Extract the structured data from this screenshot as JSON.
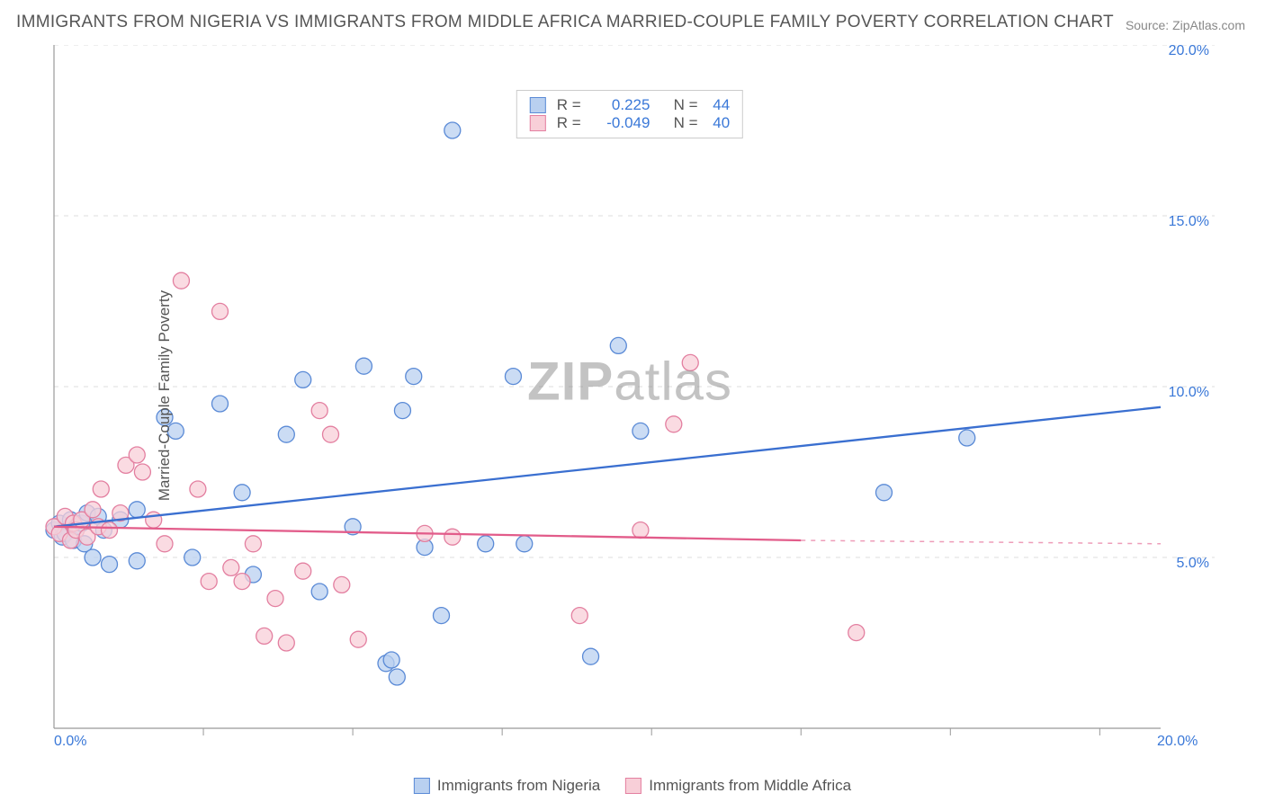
{
  "title": "IMMIGRANTS FROM NIGERIA VS IMMIGRANTS FROM MIDDLE AFRICA MARRIED-COUPLE FAMILY POVERTY CORRELATION CHART",
  "source": "Source: ZipAtlas.com",
  "ylabel": "Married-Couple Family Poverty",
  "watermark_bold": "ZIP",
  "watermark_rest": "atlas",
  "series": [
    {
      "name": "Immigrants from Nigeria",
      "fill": "#b9d0f0",
      "stroke": "#5a8ad6",
      "line_color": "#3a6fd0",
      "r_value": "0.225",
      "n_value": "44",
      "trend": {
        "x1": 0.0,
        "y1": 5.9,
        "x2": 20.0,
        "y2": 9.4
      },
      "points": [
        [
          0.0,
          5.8
        ],
        [
          0.1,
          6.0
        ],
        [
          0.15,
          5.6
        ],
        [
          0.2,
          5.7
        ],
        [
          0.3,
          6.1
        ],
        [
          0.35,
          5.5
        ],
        [
          0.4,
          5.9
        ],
        [
          0.5,
          6.0
        ],
        [
          0.55,
          5.4
        ],
        [
          0.6,
          6.3
        ],
        [
          0.7,
          5.0
        ],
        [
          0.8,
          6.2
        ],
        [
          0.9,
          5.8
        ],
        [
          1.0,
          4.8
        ],
        [
          1.2,
          6.1
        ],
        [
          1.5,
          6.4
        ],
        [
          1.5,
          4.9
        ],
        [
          2.0,
          9.1
        ],
        [
          2.2,
          8.7
        ],
        [
          2.5,
          5.0
        ],
        [
          3.0,
          9.5
        ],
        [
          3.4,
          6.9
        ],
        [
          3.6,
          4.5
        ],
        [
          4.2,
          8.6
        ],
        [
          4.5,
          10.2
        ],
        [
          4.8,
          4.0
        ],
        [
          5.4,
          5.9
        ],
        [
          5.6,
          10.6
        ],
        [
          6.0,
          1.9
        ],
        [
          6.1,
          2.0
        ],
        [
          6.2,
          1.5
        ],
        [
          6.3,
          9.3
        ],
        [
          6.5,
          10.3
        ],
        [
          6.7,
          5.3
        ],
        [
          7.0,
          3.3
        ],
        [
          7.2,
          17.5
        ],
        [
          7.8,
          5.4
        ],
        [
          8.3,
          10.3
        ],
        [
          8.5,
          5.4
        ],
        [
          9.7,
          2.1
        ],
        [
          10.2,
          11.2
        ],
        [
          10.6,
          8.7
        ],
        [
          15.0,
          6.9
        ],
        [
          16.5,
          8.5
        ]
      ]
    },
    {
      "name": "Immigrants from Middle Africa",
      "fill": "#f8cfd8",
      "stroke": "#e37fa0",
      "line_color": "#e25c8a",
      "r_value": "-0.049",
      "n_value": "40",
      "trend": {
        "x1": 0.0,
        "y1": 5.9,
        "x2": 13.5,
        "y2": 5.5
      },
      "trend_dash": {
        "x1": 13.5,
        "y1": 5.5,
        "x2": 20.0,
        "y2": 5.4
      },
      "points": [
        [
          0.0,
          5.9
        ],
        [
          0.1,
          5.7
        ],
        [
          0.2,
          6.2
        ],
        [
          0.3,
          5.5
        ],
        [
          0.35,
          6.0
        ],
        [
          0.4,
          5.8
        ],
        [
          0.5,
          6.1
        ],
        [
          0.6,
          5.6
        ],
        [
          0.7,
          6.4
        ],
        [
          0.8,
          5.9
        ],
        [
          0.85,
          7.0
        ],
        [
          1.0,
          5.8
        ],
        [
          1.2,
          6.3
        ],
        [
          1.3,
          7.7
        ],
        [
          1.5,
          8.0
        ],
        [
          1.6,
          7.5
        ],
        [
          1.8,
          6.1
        ],
        [
          2.0,
          5.4
        ],
        [
          2.3,
          13.1
        ],
        [
          2.6,
          7.0
        ],
        [
          2.8,
          4.3
        ],
        [
          3.0,
          12.2
        ],
        [
          3.2,
          4.7
        ],
        [
          3.4,
          4.3
        ],
        [
          3.6,
          5.4
        ],
        [
          3.8,
          2.7
        ],
        [
          4.0,
          3.8
        ],
        [
          4.2,
          2.5
        ],
        [
          4.5,
          4.6
        ],
        [
          4.8,
          9.3
        ],
        [
          5.0,
          8.6
        ],
        [
          5.2,
          4.2
        ],
        [
          5.5,
          2.6
        ],
        [
          6.7,
          5.7
        ],
        [
          7.2,
          5.6
        ],
        [
          9.5,
          3.3
        ],
        [
          10.6,
          5.8
        ],
        [
          11.2,
          8.9
        ],
        [
          11.5,
          10.7
        ],
        [
          14.5,
          2.8
        ]
      ]
    }
  ],
  "axes": {
    "xlim": [
      0,
      20
    ],
    "ylim": [
      0,
      20
    ],
    "y_ticks": [
      5.0,
      10.0,
      15.0,
      20.0
    ],
    "y_tick_labels": [
      "5.0%",
      "10.0%",
      "15.0%",
      "20.0%"
    ],
    "x_tick_labels_shown": {
      "start": "0.0%",
      "end": "20.0%"
    },
    "x_minor_ticks": [
      2.7,
      5.4,
      8.1,
      10.8,
      13.5,
      16.2,
      18.9
    ],
    "grid_color": "#dddddd",
    "axis_color": "#999999",
    "background": "#ffffff",
    "marker_radius": 9,
    "marker_stroke_width": 1.3,
    "trend_line_width": 2.3,
    "font_size_title": 19,
    "font_size_label": 17,
    "font_size_tick": 16
  },
  "bottom_legend": [
    {
      "label": "Immigrants from Nigeria",
      "fill": "#b9d0f0",
      "stroke": "#5a8ad6"
    },
    {
      "label": "Immigrants from Middle Africa",
      "fill": "#f8cfd8",
      "stroke": "#e37fa0"
    }
  ]
}
